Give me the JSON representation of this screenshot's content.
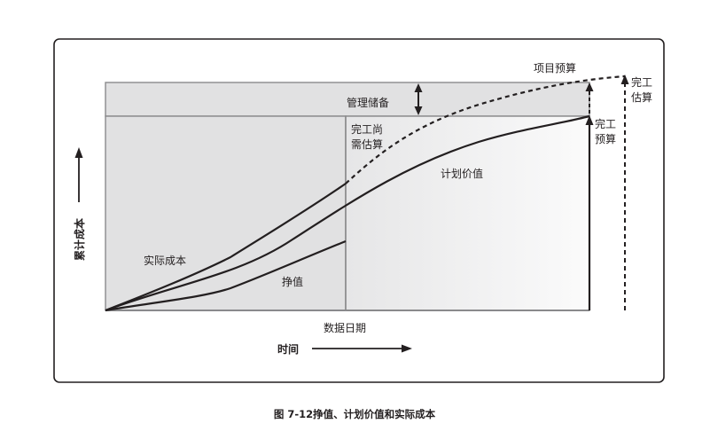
{
  "figure": {
    "caption": "图 7-12挣值、计划价值和实际成本"
  },
  "labels": {
    "project_budget": "项目预算",
    "management_reserve": "管理储备",
    "etc_line1": "完工尚",
    "etc_line2": "需估算",
    "bac_line1": "完工",
    "bac_line2": "预算",
    "eac_line1": "完工",
    "eac_line2": "估算",
    "planned_value": "计划价值",
    "actual_cost": "实际成本",
    "earned_value": "挣值",
    "data_date": "数据日期",
    "x_axis": "时间",
    "y_axis": "累计成本"
  },
  "colors": {
    "ink": "#231f20",
    "panel_fill": "#e1e1e2",
    "right_panel_fill": "#efeff0",
    "axis_gray": "#8a8a8c"
  }
}
